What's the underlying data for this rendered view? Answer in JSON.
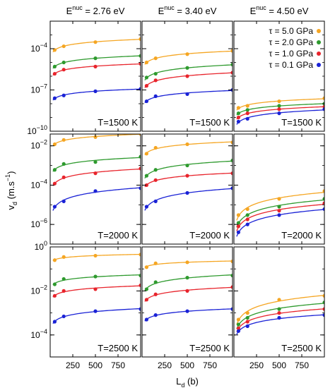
{
  "chart_data": {
    "type": "scatter",
    "column_titles": [
      {
        "base": "E",
        "sup": "nuc",
        "value": " = 2.76 eV"
      },
      {
        "base": "E",
        "sup": "nuc",
        "value": " = 3.40 eV"
      },
      {
        "base": "E",
        "sup": "nuc",
        "value": " = 4.50 eV"
      }
    ],
    "ylabel": {
      "base": "v",
      "sub": "d",
      "unit_pre": " (m.s",
      "unit_sup": "−1",
      "unit_post": ")"
    },
    "xlabel": {
      "base": "L",
      "sub": "d",
      "unit": " (b)"
    },
    "x_ticks": [
      "250",
      "500",
      "750"
    ],
    "x_tick_values": [
      250,
      500,
      750
    ],
    "xlim": [
      0,
      1000
    ],
    "yscale": "log",
    "legend": {
      "placement": "top-right",
      "entries": [
        {
          "label": "τ = 5.0 GPa",
          "color": "#f5a623"
        },
        {
          "label": "τ = 2.0 GPa",
          "color": "#2e9a2e"
        },
        {
          "label": "τ = 1.0 GPa",
          "color": "#e8242c"
        },
        {
          "label": "τ = 0.1 GPa",
          "color": "#1a22d6"
        }
      ]
    },
    "x": [
      50,
      150,
      500,
      1000
    ],
    "rows": [
      {
        "temperature": "T=1500 K",
        "ylim_exp": [
          -10,
          -2
        ],
        "y_ticks": [
          {
            "base": "10",
            "exp": "−4",
            "value_exp": -4
          },
          {
            "base": "10",
            "exp": "−7",
            "value_exp": -7
          },
          {
            "base": "10",
            "exp": "−10",
            "value_exp": -10
          }
        ],
        "panels": [
          {
            "series": [
              {
                "name": "τ = 5.0 GPa",
                "values": [
                  8e-05,
                  0.00015,
                  0.0003,
                  0.0005
                ]
              },
              {
                "name": "τ = 2.0 GPa",
                "values": [
                  5e-06,
                  1e-05,
                  2e-05,
                  3e-05
                ]
              },
              {
                "name": "τ = 1.0 GPa",
                "values": [
                  1.5e-06,
                  3e-06,
                  5e-06,
                  8e-06
                ]
              },
              {
                "name": "τ = 0.1 GPa",
                "values": [
                  2.5e-08,
                  4e-08,
                  8e-08,
                  1.2e-07
                ]
              }
            ]
          },
          {
            "series": [
              {
                "name": "τ = 5.0 GPa",
                "values": [
                  1e-05,
                  2e-05,
                  4e-05,
                  7e-05
                ]
              },
              {
                "name": "τ = 2.0 GPa",
                "values": [
                  8e-07,
                  1.5e-06,
                  4e-06,
                  7e-06
                ]
              },
              {
                "name": "τ = 1.0 GPa",
                "values": [
                  2e-07,
                  5e-07,
                  1e-06,
                  1.8e-06
                ]
              },
              {
                "name": "τ = 0.1 GPa",
                "values": [
                  1.5e-08,
                  3.5e-08,
                  5e-08,
                  1e-07
                ]
              }
            ]
          },
          {
            "series": [
              {
                "name": "τ = 5.0 GPa",
                "values": [
                  5e-09,
                  7e-09,
                  1.5e-08,
                  2.5e-08
                ]
              },
              {
                "name": "τ = 2.0 GPa",
                "values": [
                  2e-09,
                  3.5e-09,
                  7e-09,
                  1e-08
                ]
              },
              {
                "name": "τ = 1.0 GPa",
                "values": [
                  1e-09,
                  2e-09,
                  4e-09,
                  6e-09
                ]
              },
              {
                "name": "τ = 0.1 GPa",
                "values": [
                  5e-10,
                  8e-10,
                  2e-09,
                  4e-09
                ]
              }
            ]
          }
        ]
      },
      {
        "temperature": "T=2000 K",
        "ylim_exp": [
          -7,
          -1.4
        ],
        "y_ticks": [
          {
            "base": "10",
            "exp": "−2",
            "value_exp": -2
          },
          {
            "base": "10",
            "exp": "−4",
            "value_exp": -4
          },
          {
            "base": "10",
            "exp": "−6",
            "value_exp": -6
          }
        ],
        "panels": [
          {
            "series": [
              {
                "name": "τ = 5.0 GPa",
                "values": [
                  0.012,
                  0.02,
                  0.028,
                  0.04
                ]
              },
              {
                "name": "τ = 2.0 GPa",
                "values": [
                  0.0006,
                  0.0012,
                  0.0015,
                  0.0028
                ]
              },
              {
                "name": "τ = 1.0 GPa",
                "values": [
                  0.00012,
                  0.00025,
                  0.0004,
                  0.0007
                ]
              },
              {
                "name": "τ = 0.1 GPa",
                "values": [
                  8e-06,
                  1.5e-05,
                  5e-05,
                  7e-05
                ]
              }
            ]
          },
          {
            "series": [
              {
                "name": "τ = 5.0 GPa",
                "values": [
                  0.004,
                  0.008,
                  0.012,
                  0.015
                ]
              },
              {
                "name": "τ = 2.0 GPa",
                "values": [
                  0.0003,
                  0.0006,
                  0.001,
                  0.0018
                ]
              },
              {
                "name": "τ = 1.0 GPa",
                "values": [
                  0.0001,
                  0.00018,
                  0.0003,
                  0.0004
                ]
              },
              {
                "name": "τ = 0.1 GPa",
                "values": [
                  8e-06,
                  1.5e-05,
                  4e-05,
                  7e-05
                ]
              }
            ]
          },
          {
            "series": [
              {
                "name": "τ = 5.0 GPa",
                "values": [
                  3e-06,
                  6e-06,
                  2e-05,
                  5e-05
                ]
              },
              {
                "name": "τ = 2.0 GPa",
                "values": [
                  1.2e-06,
                  3e-06,
                  8e-06,
                  2e-05
                ]
              },
              {
                "name": "τ = 1.0 GPa",
                "values": [
                  8e-07,
                  1.8e-06,
                  5e-06,
                  1.2e-05
                ]
              },
              {
                "name": "τ = 0.1 GPa",
                "values": [
                  4e-07,
                  1e-06,
                  3e-06,
                  6e-06
                ]
              }
            ]
          }
        ]
      },
      {
        "temperature": "T=2500 K",
        "ylim_exp": [
          -5,
          0
        ],
        "y_ticks": [
          {
            "base": "10",
            "exp": "0",
            "value_exp": 0
          },
          {
            "base": "10",
            "exp": "−2",
            "value_exp": -2
          },
          {
            "base": "10",
            "exp": "−4",
            "value_exp": -4
          }
        ],
        "panels": [
          {
            "series": [
              {
                "name": "τ = 5.0 GPa",
                "values": [
                  0.25,
                  0.35,
                  0.4,
                  0.45
                ]
              },
              {
                "name": "τ = 2.0 GPa",
                "values": [
                  0.02,
                  0.035,
                  0.045,
                  0.05
                ]
              },
              {
                "name": "τ = 1.0 GPa",
                "values": [
                  0.006,
                  0.01,
                  0.012,
                  0.018
                ]
              },
              {
                "name": "τ = 0.1 GPa",
                "values": [
                  0.0004,
                  0.0007,
                  0.0012,
                  0.0015
                ]
              }
            ]
          },
          {
            "series": [
              {
                "name": "τ = 5.0 GPa",
                "values": [
                  0.12,
                  0.18,
                  0.2,
                  0.22
                ]
              },
              {
                "name": "τ = 2.0 GPa",
                "values": [
                  0.012,
                  0.025,
                  0.04,
                  0.05
                ]
              },
              {
                "name": "τ = 1.0 GPa",
                "values": [
                  0.004,
                  0.007,
                  0.01,
                  0.015
                ]
              },
              {
                "name": "τ = 0.1 GPa",
                "values": [
                  0.0005,
                  0.0008,
                  0.0012,
                  0.0015
                ]
              }
            ]
          },
          {
            "series": [
              {
                "name": "τ = 5.0 GPa",
                "values": [
                  0.0005,
                  0.001,
                  0.004,
                  0.006
                ]
              },
              {
                "name": "τ = 2.0 GPa",
                "values": [
                  0.0003,
                  0.0006,
                  0.0015,
                  0.003
                ]
              },
              {
                "name": "τ = 1.0 GPa",
                "values": [
                  0.0002,
                  0.0004,
                  0.001,
                  0.0015
                ]
              },
              {
                "name": "τ = 0.1 GPa",
                "values": [
                  0.00015,
                  0.00025,
                  0.0006,
                  0.0008
                ]
              }
            ]
          }
        ]
      }
    ]
  }
}
